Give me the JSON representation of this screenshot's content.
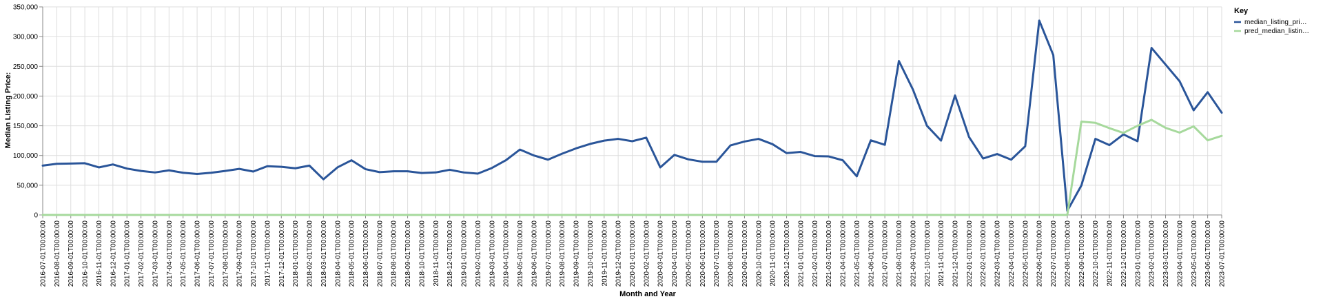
{
  "chart_data": {
    "type": "line",
    "xlabel": "Month and Year",
    "ylabel": "Median Listing Price:",
    "ylim": [
      0,
      350000
    ],
    "yticks": [
      "0",
      "50,000",
      "100,000",
      "150,000",
      "200,000",
      "250,000",
      "300,000",
      "350,000"
    ],
    "grid": true,
    "legend": {
      "title": "Key",
      "position": "top-right"
    },
    "x": [
      "2016-07-01T00:00:00",
      "2016-08-01T00:00:00",
      "2016-09-01T00:00:00",
      "2016-10-01T00:00:00",
      "2016-11-01T00:00:00",
      "2016-12-01T00:00:00",
      "2017-01-01T00:00:00",
      "2017-02-01T00:00:00",
      "2017-03-01T00:00:00",
      "2017-04-01T00:00:00",
      "2017-05-01T00:00:00",
      "2017-06-01T00:00:00",
      "2017-07-01T00:00:00",
      "2017-08-01T00:00:00",
      "2017-09-01T00:00:00",
      "2017-10-01T00:00:00",
      "2017-11-01T00:00:00",
      "2017-12-01T00:00:00",
      "2018-01-01T00:00:00",
      "2018-02-01T00:00:00",
      "2018-03-01T00:00:00",
      "2018-04-01T00:00:00",
      "2018-05-01T00:00:00",
      "2018-06-01T00:00:00",
      "2018-07-01T00:00:00",
      "2018-08-01T00:00:00",
      "2018-09-01T00:00:00",
      "2018-10-01T00:00:00",
      "2018-11-01T00:00:00",
      "2018-12-01T00:00:00",
      "2019-01-01T00:00:00",
      "2019-02-01T00:00:00",
      "2019-03-01T00:00:00",
      "2019-04-01T00:00:00",
      "2019-05-01T00:00:00",
      "2019-06-01T00:00:00",
      "2019-07-01T00:00:00",
      "2019-08-01T00:00:00",
      "2019-09-01T00:00:00",
      "2019-10-01T00:00:00",
      "2019-11-01T00:00:00",
      "2019-12-01T00:00:00",
      "2020-01-01T00:00:00",
      "2020-02-01T00:00:00",
      "2020-03-01T00:00:00",
      "2020-04-01T00:00:00",
      "2020-05-01T00:00:00",
      "2020-06-01T00:00:00",
      "2020-07-01T00:00:00",
      "2020-08-01T00:00:00",
      "2020-09-01T00:00:00",
      "2020-10-01T00:00:00",
      "2020-11-01T00:00:00",
      "2020-12-01T00:00:00",
      "2021-01-01T00:00:00",
      "2021-02-01T00:00:00",
      "2021-03-01T00:00:00",
      "2021-04-01T00:00:00",
      "2021-05-01T00:00:00",
      "2021-06-01T00:00:00",
      "2021-07-01T00:00:00",
      "2021-08-01T00:00:00",
      "2021-09-01T00:00:00",
      "2021-10-01T00:00:00",
      "2021-11-01T00:00:00",
      "2021-12-01T00:00:00",
      "2022-01-01T00:00:00",
      "2022-02-01T00:00:00",
      "2022-03-01T00:00:00",
      "2022-04-01T00:00:00",
      "2022-05-01T00:00:00",
      "2022-06-01T00:00:00",
      "2022-07-01T00:00:00",
      "2022-08-01T00:00:00",
      "2022-09-01T00:00:00",
      "2022-10-01T00:00:00",
      "2022-11-01T00:00:00",
      "2022-12-01T00:00:00",
      "2023-01-01T00:00:00",
      "2023-02-01T00:00:00",
      "2023-03-01T00:00:00",
      "2023-04-01T00:00:00",
      "2023-05-01T00:00:00",
      "2023-06-01T00:00:00",
      "2023-07-01T00:00:00"
    ],
    "series": [
      {
        "name": "median_listing_pri…",
        "color": "#2a5599",
        "values": [
          83000,
          86000,
          86500,
          87000,
          80000,
          85000,
          78000,
          74000,
          71500,
          75000,
          71000,
          69000,
          71000,
          74000,
          77500,
          73000,
          82000,
          81000,
          78500,
          83000,
          60000,
          80000,
          92000,
          77000,
          72000,
          73500,
          73500,
          70500,
          71500,
          76000,
          71500,
          69500,
          79000,
          92000,
          110000,
          100000,
          93000,
          103000,
          112000,
          119500,
          125000,
          128000,
          124000,
          130000,
          80000,
          101000,
          93500,
          89500,
          89500,
          117000,
          123500,
          128000,
          119000,
          104000,
          106000,
          99000,
          98500,
          92000,
          65000,
          125500,
          118000,
          259000,
          211000,
          150000,
          125000,
          201000,
          131000,
          95000,
          102500,
          93000,
          115500,
          327000,
          269000,
          7000,
          49500,
          128000,
          117500,
          135500,
          124000,
          281000,
          253000,
          225000,
          176000,
          206500,
          172000
        ]
      },
      {
        "name": "pred_median_listin…",
        "color": "#a6d99c",
        "values": [
          0,
          0,
          0,
          0,
          0,
          0,
          0,
          0,
          0,
          0,
          0,
          0,
          0,
          0,
          0,
          0,
          0,
          0,
          0,
          0,
          0,
          0,
          0,
          0,
          0,
          0,
          0,
          0,
          0,
          0,
          0,
          0,
          0,
          0,
          0,
          0,
          0,
          0,
          0,
          0,
          0,
          0,
          0,
          0,
          0,
          0,
          0,
          0,
          0,
          0,
          0,
          0,
          0,
          0,
          0,
          0,
          0,
          0,
          0,
          0,
          0,
          0,
          0,
          0,
          0,
          0,
          0,
          0,
          0,
          0,
          0,
          0,
          0,
          0,
          157000,
          155000,
          146000,
          138000,
          150000,
          160000,
          146500,
          138500,
          149000,
          125500,
          133000
        ]
      }
    ]
  }
}
